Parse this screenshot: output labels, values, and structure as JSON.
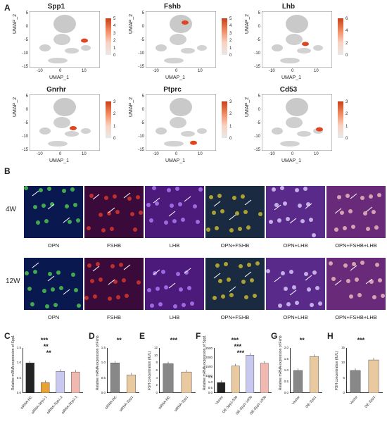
{
  "panel_letters": {
    "a": "A",
    "b": "B",
    "c": "C",
    "d": "D",
    "e": "E",
    "f": "F",
    "g": "G",
    "h": "H"
  },
  "umap": {
    "xlabel": "UMAP_1",
    "ylabel": "UMAP_2",
    "x_ticks": [
      "-10",
      "0",
      "10"
    ],
    "y_ticks": [
      "5",
      "0",
      "-5",
      "-10",
      "-15"
    ],
    "plots": [
      {
        "gene": "Spp1",
        "scale": [
          "5",
          "4",
          "3",
          "2",
          "1",
          "0"
        ]
      },
      {
        "gene": "Fshb",
        "scale": [
          "5",
          "4",
          "3",
          "2",
          "1",
          "0"
        ]
      },
      {
        "gene": "Lhb",
        "scale": [
          "6",
          "4",
          "2",
          "0"
        ]
      },
      {
        "gene": "Gnrhr",
        "scale": [
          "3",
          "2",
          "1",
          "0"
        ]
      },
      {
        "gene": "Ptprc",
        "scale": [
          "3",
          "2",
          "1",
          "0"
        ]
      },
      {
        "gene": "Cd53",
        "scale": [
          "3",
          "2",
          "1",
          "0"
        ]
      }
    ]
  },
  "microscopy": {
    "rows": [
      {
        "label": "4W"
      },
      {
        "label": "12W"
      }
    ],
    "channels": [
      "OPN",
      "FSHB",
      "LHB",
      "OPN+FSHB",
      "OPN+LHB",
      "OPN+FSHB+LHB"
    ]
  },
  "chart_data": [
    {
      "panel": "C",
      "type": "bar",
      "ylabel": "Relative mRNA expression of Spp1",
      "categories": [
        "siRNA-NC",
        "siRNA-Spp1-1",
        "siRNA-Spp1-2",
        "siRNA-Spp1-3"
      ],
      "values": [
        1.0,
        0.35,
        0.72,
        0.7
      ],
      "ylim": [
        0,
        1.5
      ],
      "yticks": [
        "0.0",
        "0.5",
        "1.0",
        "1.5"
      ],
      "colors": [
        "#222222",
        "#e8a235",
        "#c8c8f0",
        "#f0b8b0"
      ],
      "significance": [
        "***",
        "**",
        "**"
      ]
    },
    {
      "panel": "D",
      "type": "bar",
      "ylabel": "Relative mRNA expression of Fshb",
      "categories": [
        "siRNA-NC",
        "siRNA-Spp1"
      ],
      "values": [
        1.0,
        0.6
      ],
      "ylim": [
        0,
        1.5
      ],
      "yticks": [
        "0.0",
        "0.5",
        "1.0",
        "1.5"
      ],
      "colors": [
        "#888888",
        "#e8c9a0"
      ],
      "significance": [
        "**"
      ]
    },
    {
      "panel": "E",
      "type": "bar",
      "ylabel": "FSH concentration (IU/L)",
      "categories": [
        "siRNA-NC",
        "siRNA-Spp1"
      ],
      "values": [
        7.8,
        5.6
      ],
      "ylim": [
        0,
        12
      ],
      "yticks": [
        "0",
        "2",
        "4",
        "6",
        "8",
        "10",
        "12"
      ],
      "colors": [
        "#888888",
        "#e8c9a0"
      ],
      "significance": [
        "***"
      ]
    },
    {
      "panel": "F",
      "type": "bar",
      "ylabel": "Relative mRNA expression of Spp1",
      "categories": [
        "Vector",
        "OE-Spp1-500",
        "OE-Spp1-1000",
        "OE-Spp1-1500"
      ],
      "values": [
        1.0,
        1550,
        2150,
        1700
      ],
      "yticks": [
        "0.0",
        "0.5",
        "1.0",
        "1.5",
        "1000",
        "1500",
        "2000",
        "2500"
      ],
      "colors": [
        "#222222",
        "#e8c9a0",
        "#c8c8f0",
        "#f0b8b0"
      ],
      "significance": [
        "***",
        "***",
        "***"
      ]
    },
    {
      "panel": "G",
      "type": "bar",
      "ylabel": "Relative mRNA expression of Fshb",
      "categories": [
        "Vector",
        "OE-Spp1"
      ],
      "values": [
        1.0,
        1.62
      ],
      "ylim": [
        0,
        2.0
      ],
      "yticks": [
        "0.0",
        "0.5",
        "1.0",
        "1.5",
        "2.0"
      ],
      "colors": [
        "#888888",
        "#e8c9a0"
      ],
      "significance": [
        "**"
      ]
    },
    {
      "panel": "H",
      "type": "bar",
      "ylabel": "FSH concentration (IU/L)",
      "categories": [
        "Vector",
        "OE-Spp1"
      ],
      "values": [
        7.5,
        11.0
      ],
      "ylim": [
        0,
        15
      ],
      "yticks": [
        "0",
        "5",
        "10",
        "15"
      ],
      "colors": [
        "#888888",
        "#e8c9a0"
      ],
      "significance": [
        "***"
      ]
    }
  ]
}
